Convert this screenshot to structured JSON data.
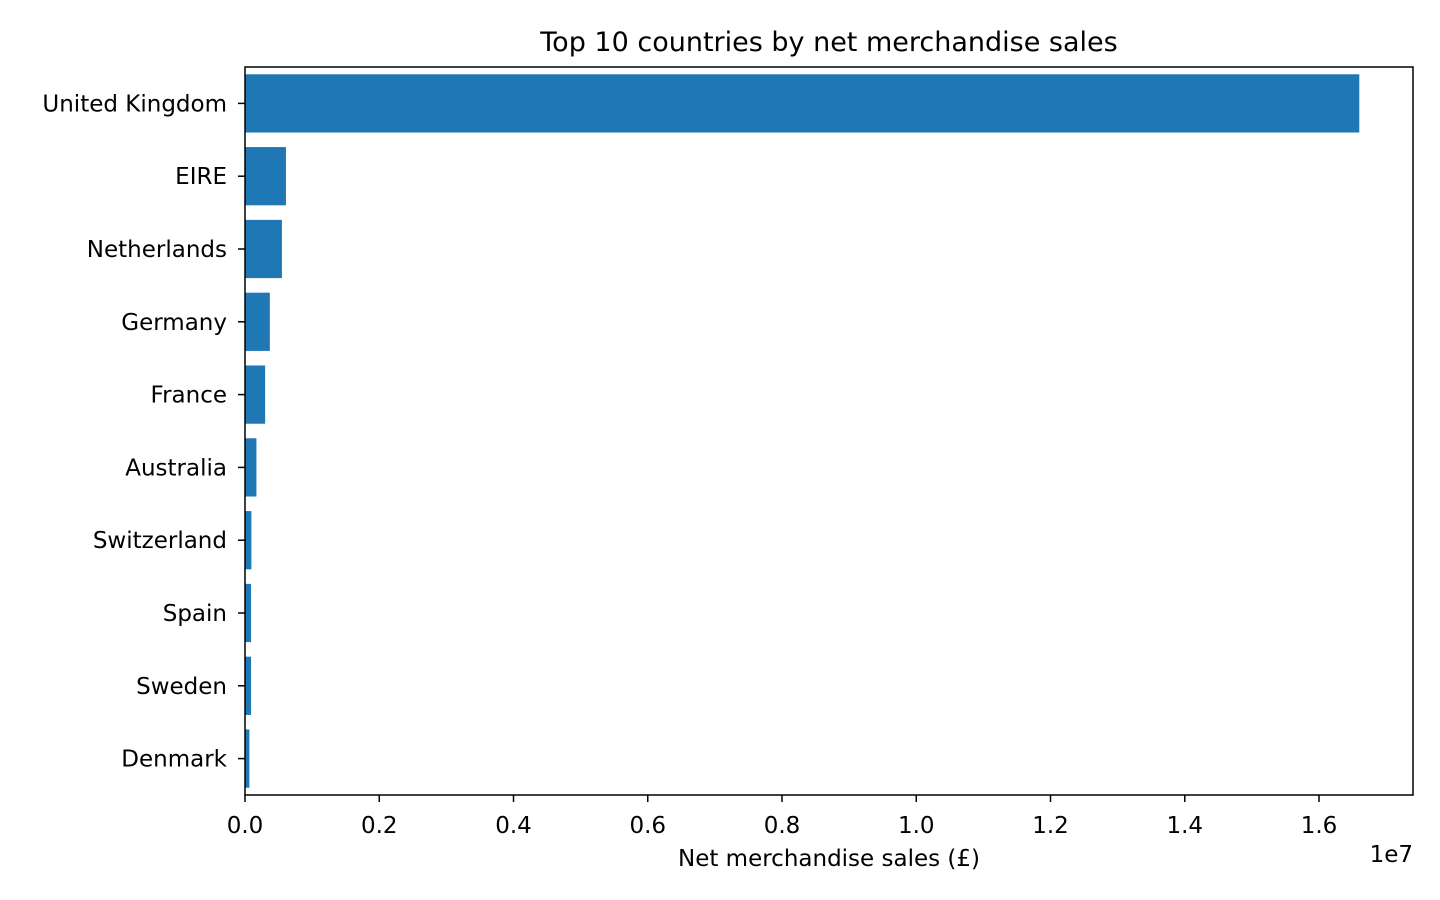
{
  "chart_data": {
    "type": "bar",
    "orientation": "horizontal",
    "title": "Top 10 countries by net merchandise sales",
    "xlabel": "Net merchandise sales (£)",
    "ylabel": "",
    "x_offset_label": "1e7",
    "xlim": [
      0,
      17400000
    ],
    "xticks": [
      0,
      2000000,
      4000000,
      6000000,
      8000000,
      10000000,
      12000000,
      14000000,
      16000000
    ],
    "xtick_labels": [
      "0.0",
      "0.2",
      "0.4",
      "0.6",
      "0.8",
      "1.0",
      "1.2",
      "1.4",
      "1.6"
    ],
    "categories": [
      "United Kingdom",
      "EIRE",
      "Netherlands",
      "Germany",
      "France",
      "Australia",
      "Switzerland",
      "Spain",
      "Sweden",
      "Denmark"
    ],
    "values": [
      16600000,
      610000,
      550000,
      370000,
      300000,
      170000,
      95000,
      90000,
      90000,
      65000
    ],
    "bar_color": "#1f77b4",
    "grid": false,
    "legend": "none"
  }
}
